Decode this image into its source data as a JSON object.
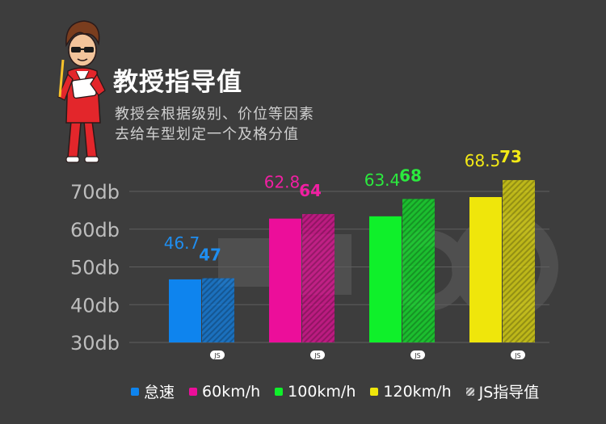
{
  "header": {
    "title": "教授指导值",
    "subtitle_line1": "教授会根据级别、价位等因素",
    "subtitle_line2": "去给车型划定一个及格分值"
  },
  "badge_text": "JS",
  "chart_data": {
    "type": "bar",
    "categories": [
      "怠速",
      "60km/h",
      "100km/h",
      "120km/h"
    ],
    "series": [
      {
        "name": "measured",
        "values": [
          46.7,
          62.8,
          63.4,
          68.5
        ],
        "value_labels": [
          "46.7",
          "62.8",
          "63.4",
          "68.5"
        ],
        "style": "solid"
      },
      {
        "name": "JS指导值",
        "values": [
          47,
          64,
          68,
          73
        ],
        "value_labels": [
          "47",
          "64",
          "68",
          "73"
        ],
        "style": "hatched"
      }
    ],
    "colors": [
      "#0e84ee",
      "#ec0e9a",
      "#0ff02a",
      "#efe60b"
    ],
    "label_colors": [
      "#1f8ef0",
      "#f01fa2",
      "#2bea3e",
      "#f3ea16"
    ],
    "y_ticks": [
      "30db",
      "40db",
      "50db",
      "60db",
      "70db"
    ],
    "y_tick_values": [
      30,
      40,
      50,
      60,
      70
    ],
    "ylim": [
      30,
      70
    ],
    "grid": true,
    "legend_position": "bottom",
    "legend": [
      "怠速",
      "60km/h",
      "100km/h",
      "120km/h",
      "JS指导值"
    ]
  }
}
